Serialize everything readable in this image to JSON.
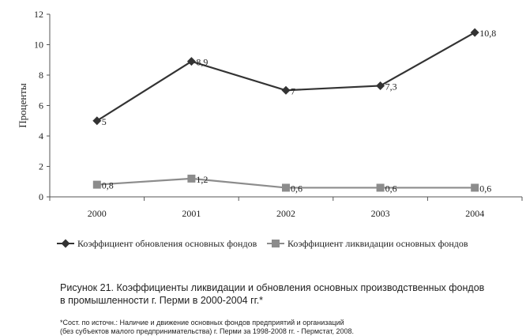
{
  "chart_data": {
    "type": "line",
    "categories": [
      "2000",
      "2001",
      "2002",
      "2003",
      "2004"
    ],
    "ylabel": "Проценты",
    "ylim": [
      0,
      12
    ],
    "yticks": [
      "0",
      "2",
      "4",
      "6",
      "8",
      "10",
      "12"
    ],
    "grid": false,
    "legend_position": "bottom",
    "series": [
      {
        "name": "Коэффициент обновления основных фондов",
        "values": [
          5,
          8.9,
          7,
          7.3,
          10.8
        ],
        "labels": [
          "5",
          "8,9",
          "7",
          "7,3",
          "10,8"
        ],
        "marker": "diamond",
        "color": "#333333"
      },
      {
        "name": "Коэффициент ликвидации основных фондов",
        "values": [
          0.8,
          1.2,
          0.6,
          0.6,
          0.6
        ],
        "labels": [
          "0,8",
          "1,2",
          "0,6",
          "0,6",
          "0,6"
        ],
        "marker": "square",
        "color": "#8c8c8c"
      }
    ]
  },
  "caption": {
    "line1": "Рисунок 21. Коэффициенты ликвидации и обновления основных производственных фондов",
    "line2": "в промышленности г. Перми в 2000-2004 гг.*"
  },
  "source": {
    "line1": "*Сост. по источн.: Наличие и движение основных фондов предприятий и организаций",
    "line2": "(без субъектов малого предпринимательства) г. Перми за 1998-2008 гг. - Пермстат, 2008."
  }
}
